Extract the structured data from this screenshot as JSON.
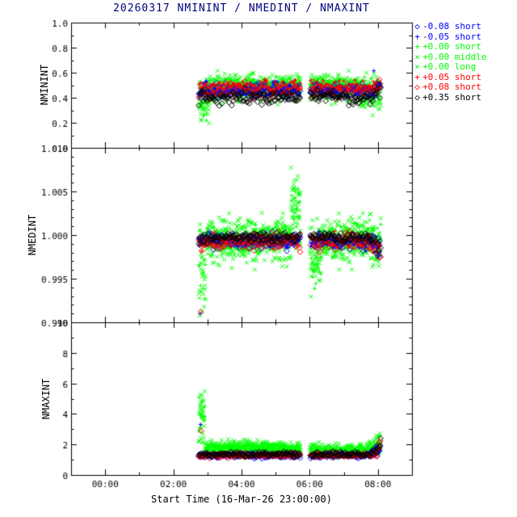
{
  "colors": {
    "title": "#000080",
    "axis": "#000000",
    "background": "#ffffff"
  },
  "chart_data": {
    "type": "scatter",
    "title": "20260317 NMININT / NMEDINT / NMAXINT",
    "xlabel": "Start Time (16-Mar-26 23:00:00)",
    "x_axis": {
      "range_hours": [
        -1,
        9
      ],
      "major_tick_hours": [
        0,
        2,
        4,
        6,
        8
      ],
      "tick_labels": [
        "00:00",
        "02:00",
        "04:00",
        "06:00",
        "08:00"
      ],
      "minor_tick_hours": [
        1,
        3,
        5,
        7
      ]
    },
    "panels": [
      {
        "ylabel": "NMININT",
        "ylim": [
          0,
          1
        ],
        "ytick_values": [
          0,
          0.2,
          0.4,
          0.6,
          0.8,
          1
        ],
        "ytick_labels": [
          "0.0",
          "0.2",
          "0.4",
          "0.6",
          "0.8",
          "1.0"
        ],
        "yminor_values": [
          0.1,
          0.3,
          0.5,
          0.7,
          0.9
        ]
      },
      {
        "ylabel": "NMEDINT",
        "ylim": [
          0.99,
          1.01
        ],
        "ytick_values": [
          0.99,
          0.995,
          1.0,
          1.005,
          1.01
        ],
        "ytick_labels": [
          "0.990",
          "0.995",
          "1.000",
          "1.005",
          "1.010"
        ],
        "yminor_values": [
          0.991,
          0.992,
          0.993,
          0.994,
          0.996,
          0.997,
          0.998,
          0.999,
          1.001,
          1.002,
          1.003,
          1.004,
          1.006,
          1.007,
          1.008,
          1.009
        ]
      },
      {
        "ylabel": "NMAXINT",
        "ylim": [
          0,
          10
        ],
        "ytick_values": [
          0,
          2,
          4,
          6,
          8,
          10
        ],
        "ytick_labels": [
          "0",
          "2",
          "4",
          "6",
          "8",
          "10"
        ],
        "yminor_values": [
          1,
          3,
          5,
          7,
          9
        ]
      }
    ],
    "time_span": {
      "start": 2.75,
      "end": 8.08,
      "gap": [
        5.73,
        6.0
      ]
    },
    "series": [
      {
        "id": "b_diam",
        "label": "-0.08 short",
        "color": "#0000ff",
        "symbol": "diamond",
        "symbol_char": "◇",
        "cadence_h": 0.028,
        "per_panel": [
          {
            "base": 0.455,
            "sigma": 0.027
          },
          {
            "base": 0.9993,
            "sigma": 0.00045
          },
          {
            "base": 1.25,
            "sigma": 0.07
          }
        ]
      },
      {
        "id": "b_plus",
        "label": "-0.05 short",
        "color": "#0000ff",
        "symbol": "plus",
        "symbol_char": "+",
        "cadence_h": 0.028,
        "per_panel": [
          {
            "base": 0.46,
            "sigma": 0.03
          },
          {
            "base": 0.9993,
            "sigma": 0.00045
          },
          {
            "base": 1.32,
            "sigma": 0.09
          }
        ]
      },
      {
        "id": "g_plus",
        "label": "+0.00 short",
        "color": "#00ff00",
        "symbol": "plus",
        "symbol_char": "+",
        "cadence_h": 0.016,
        "per_panel": [
          {
            "base": 0.49,
            "sigma": 0.035
          },
          {
            "base": 0.9996,
            "sigma": 0.0007
          },
          {
            "base": 1.45,
            "sigma": 0.12
          }
        ]
      },
      {
        "id": "g_mid",
        "label": "+0.00 middle",
        "color": "#00ff00",
        "symbol": "cross",
        "symbol_char": "×",
        "cadence_h": 0.013,
        "wave_p2": 0.12,
        "per_panel": [
          {
            "base": 0.49,
            "sigma": 0.05
          },
          {
            "base": 0.9995,
            "sigma": 0.0012
          },
          {
            "base": 1.7,
            "sigma": 0.17
          }
        ]
      },
      {
        "id": "g_long",
        "label": "+0.00 long",
        "color": "#00ff00",
        "symbol": "cross",
        "symbol_char": "×",
        "cadence_h": 0.013,
        "wave_p2": 0.12,
        "per_panel": [
          {
            "base": 0.47,
            "sigma": 0.05
          },
          {
            "base": 0.9993,
            "sigma": 0.0013
          },
          {
            "base": 1.78,
            "sigma": 0.19
          }
        ]
      },
      {
        "id": "r_plus",
        "label": "+0.05 short",
        "color": "#ff0000",
        "symbol": "plus",
        "symbol_char": "+",
        "cadence_h": 0.028,
        "per_panel": [
          {
            "base": 0.49,
            "sigma": 0.028
          },
          {
            "base": 0.9993,
            "sigma": 0.00045
          },
          {
            "base": 1.27,
            "sigma": 0.07
          }
        ]
      },
      {
        "id": "r_diam",
        "label": "+0.08 short",
        "color": "#ff0000",
        "symbol": "diamond",
        "symbol_char": "◇",
        "cadence_h": 0.028,
        "per_panel": [
          {
            "base": 0.46,
            "sigma": 0.03
          },
          {
            "base": 0.9992,
            "sigma": 0.0005
          },
          {
            "base": 1.3,
            "sigma": 0.08
          }
        ]
      },
      {
        "id": "k_diam",
        "label": "+0.35 short",
        "color": "#000000",
        "symbol": "diamond",
        "symbol_char": "◇",
        "cadence_h": 0.026,
        "per_panel": [
          {
            "base": 0.405,
            "sigma": 0.028
          },
          {
            "base": 0.9997,
            "sigma": 0.00035
          },
          {
            "base": 1.35,
            "sigma": 0.08
          }
        ]
      }
    ],
    "draw_order": [
      "g_long",
      "g_mid",
      "g_plus",
      "b_diam",
      "r_diam",
      "b_plus",
      "r_plus",
      "k_diam"
    ],
    "events": [
      {
        "panel": 0,
        "ids": [
          "g_plus",
          "g_mid",
          "g_long"
        ],
        "t0": 2.75,
        "t1": 3.05,
        "dv": [
          -0.22,
          0.02
        ]
      },
      {
        "panel": 0,
        "ids": [
          "g_mid",
          "g_long"
        ],
        "t0": 7.45,
        "t1": 8.08,
        "dv": [
          -0.13,
          0.03
        ]
      },
      {
        "panel": 0,
        "ids": [
          "k_diam",
          "b_plus",
          "r_diam"
        ],
        "t0": 7.85,
        "t1": 8.08,
        "dv": [
          0,
          0.13
        ],
        "ramp": true
      },
      {
        "panel": 1,
        "ids": [
          "g_plus",
          "g_mid",
          "g_long"
        ],
        "t0": 2.75,
        "t1": 2.95,
        "dv": [
          -0.0085,
          0.0008
        ]
      },
      {
        "panel": 1,
        "ids": [
          "g_plus",
          "g_mid",
          "g_long"
        ],
        "t0": 5.45,
        "t1": 5.72,
        "dv": [
          0,
          0.0062
        ]
      },
      {
        "panel": 1,
        "ids": [
          "g_plus",
          "g_mid",
          "g_long"
        ],
        "t0": 6.0,
        "t1": 6.35,
        "dv": [
          -0.0048,
          0.0008
        ]
      },
      {
        "panel": 1,
        "ids": [
          "b_diam",
          "b_plus",
          "g_plus",
          "g_mid",
          "g_long",
          "r_plus",
          "r_diam",
          "k_diam"
        ],
        "t0": 7.75,
        "t1": 8.08,
        "dv": [
          -0.0018,
          0.0002
        ],
        "ramp": true
      },
      {
        "panel": 2,
        "ids": [
          "g_plus",
          "g_mid",
          "g_long"
        ],
        "t0": 2.75,
        "t1": 2.93,
        "dv": [
          0,
          3.7
        ]
      },
      {
        "panel": 2,
        "ids": [
          "b_diam",
          "b_plus",
          "g_plus",
          "g_mid",
          "g_long",
          "r_plus",
          "r_diam",
          "k_diam"
        ],
        "t0": 7.75,
        "t1": 8.08,
        "dv": [
          0,
          1.0
        ],
        "ramp": true
      }
    ],
    "extra_points": [
      {
        "panel": 0,
        "id": "g_mid",
        "t": 2.82,
        "v": 0.225
      },
      {
        "panel": 0,
        "id": "b_plus",
        "t": 7.88,
        "v": 0.615
      },
      {
        "panel": 1,
        "id": "b_plus",
        "t": 2.79,
        "v": 0.991
      },
      {
        "panel": 1,
        "id": "r_diam",
        "t": 2.8,
        "v": 0.9912
      },
      {
        "panel": 1,
        "id": "g_mid",
        "t": 5.62,
        "v": 1.0063
      },
      {
        "panel": 2,
        "id": "g_mid",
        "t": 2.79,
        "v": 5.25
      },
      {
        "panel": 2,
        "id": "b_plus",
        "t": 2.8,
        "v": 3.3
      },
      {
        "panel": 2,
        "id": "r_diam",
        "t": 2.81,
        "v": 2.9
      }
    ],
    "seed": 42
  }
}
